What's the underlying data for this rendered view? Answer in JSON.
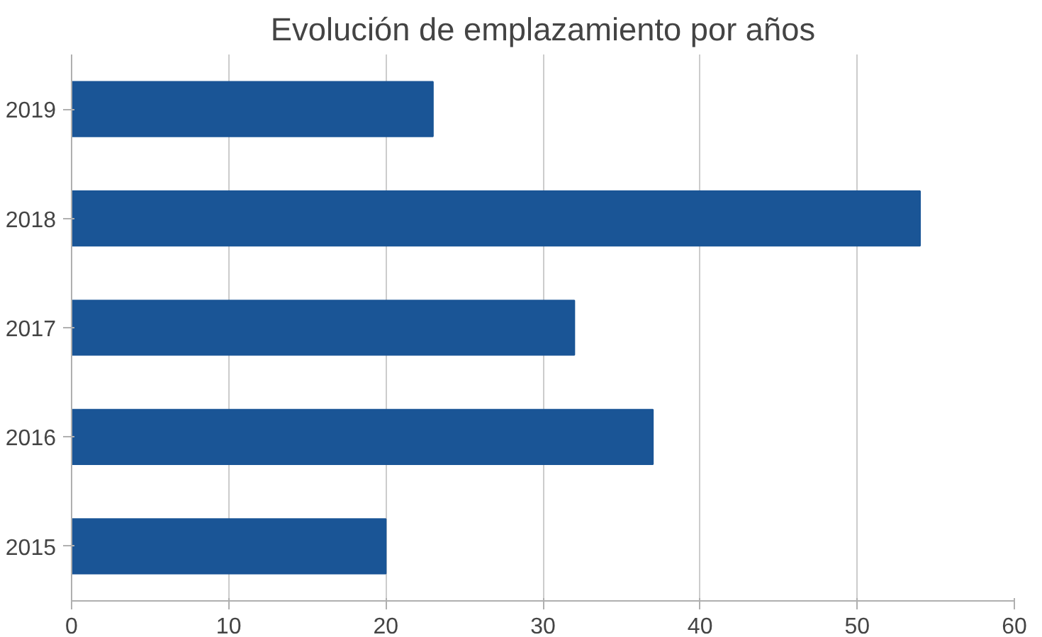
{
  "chart_data": {
    "type": "bar",
    "orientation": "horizontal",
    "title": "Evolución de emplazamiento por años",
    "categories": [
      "2019",
      "2018",
      "2017",
      "2016",
      "2015"
    ],
    "values": [
      23,
      54,
      32,
      37,
      20
    ],
    "color": "#1a5596",
    "xlim": [
      0,
      60
    ],
    "xticks": [
      0,
      10,
      20,
      30,
      40,
      50,
      60
    ],
    "grid": "x"
  }
}
